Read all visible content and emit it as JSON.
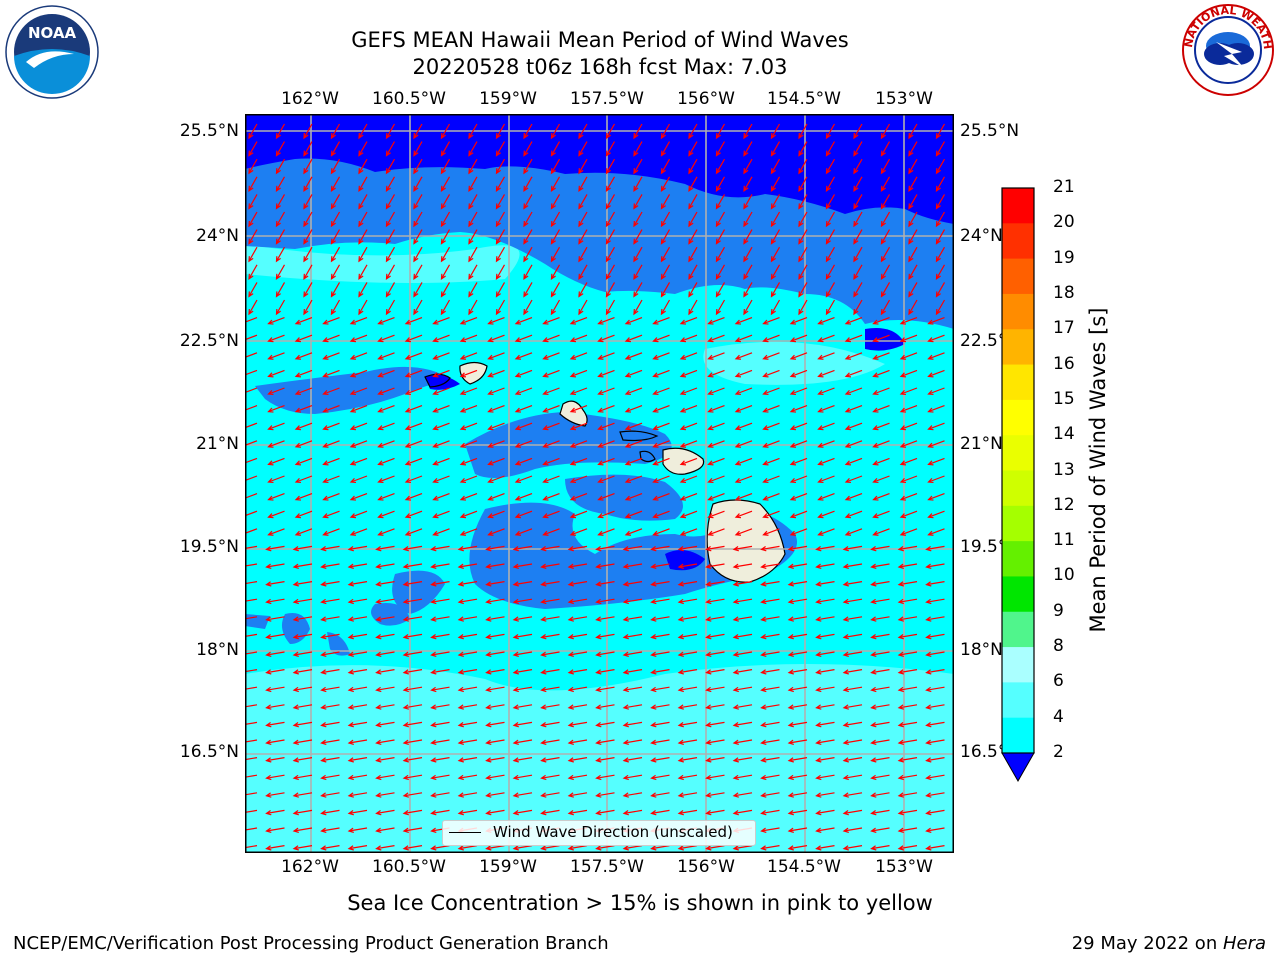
{
  "title": {
    "line1": "GEFS MEAN Hawaii Mean Period of Wind Waves",
    "line2": "20220528 t06z 168h fcst   Max: 7.03"
  },
  "logos": {
    "left": {
      "icon": "noaa-logo",
      "text": "NOAA"
    },
    "right": {
      "icon": "nws-logo",
      "text": "NATIONAL WEATHER SERVICE"
    }
  },
  "map": {
    "lon_labels": [
      "162°W",
      "160.5°W",
      "159°W",
      "157.5°W",
      "156°W",
      "154.5°W",
      "153°W"
    ],
    "lat_labels": [
      "25.5°N",
      "24°N",
      "22.5°N",
      "21°N",
      "19.5°N",
      "18°N",
      "16.5°N"
    ],
    "lon_values": [
      -162,
      -160.5,
      -159,
      -157.5,
      -156,
      -154.5,
      -153
    ],
    "lat_values": [
      25.5,
      24,
      22.5,
      21,
      19.5,
      18,
      16.5
    ],
    "legend_text": "Wind Wave Direction (unscaled)",
    "colors": {
      "period_2_4": "#1d7ff2",
      "period_4_6": "#00ffff",
      "period_6_8": "#55ffff",
      "below_2": "#0000ff",
      "land": "#efeedc",
      "arrows": "#ff0000",
      "grid": "#b0b0b0"
    }
  },
  "colorbar": {
    "label": "Mean Period of Wind Waves [s]",
    "ticks": [
      "21",
      "20",
      "19",
      "18",
      "17",
      "16",
      "15",
      "14",
      "13",
      "12",
      "11",
      "10",
      "9",
      "8",
      "6",
      "4",
      "2"
    ],
    "colors": [
      "#ff0000",
      "#ff3000",
      "#ff6000",
      "#ff8c00",
      "#ffb400",
      "#ffe600",
      "#ffff00",
      "#eaff00",
      "#cfff00",
      "#a5ff00",
      "#64f000",
      "#00e600",
      "#50f58c",
      "#aaffff",
      "#55ffff",
      "#00ffff",
      "#1d7ff2"
    ],
    "extend_color": "#0000ff"
  },
  "footer": {
    "ice_note": "Sea Ice Concentration > 15% is shown in pink to yellow",
    "credit": "NCEP/EMC/Verification Post Processing Product Generation Branch",
    "date": "29 May 2022 on ",
    "host": "Hera"
  }
}
